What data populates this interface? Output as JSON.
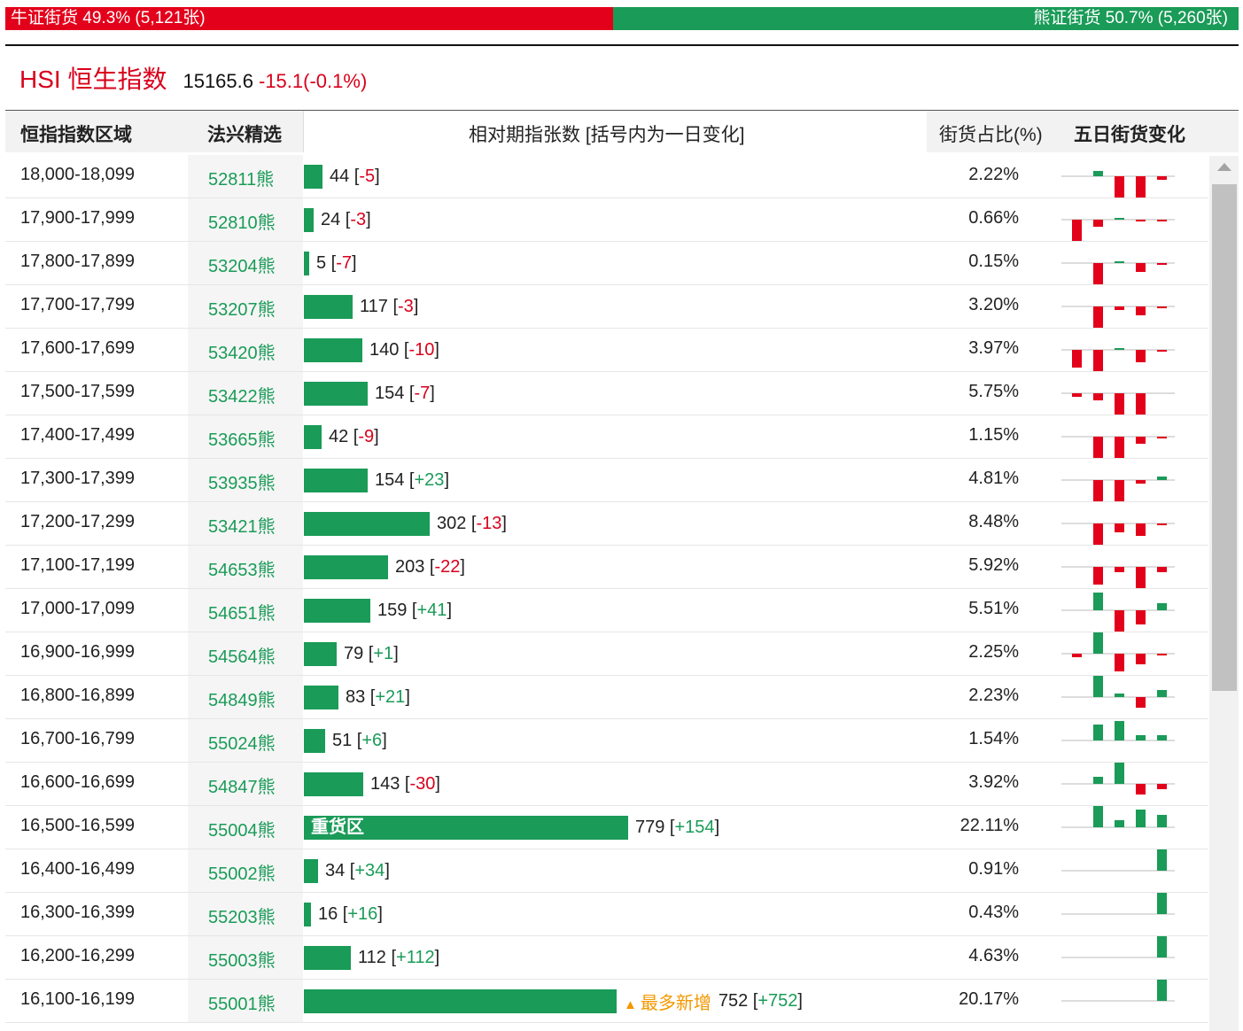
{
  "summary": {
    "bull_label": "牛证街货 49.3% (5,121张)",
    "bear_label": "熊证街货 50.7% (5,260张)",
    "bull_share": 49.3,
    "bear_share": 50.7
  },
  "index": {
    "name": "HSI 恒生指数",
    "value": "15165.6",
    "change": "-15.1(-0.1%)"
  },
  "headers": {
    "range": "恒指指数区域",
    "pick": "法兴精选",
    "relative": "相对期指张数 [括号内为一日变化]",
    "share": "街货占比(%)",
    "five_day": "五日街货变化"
  },
  "colors": {
    "bull": "#e3001b",
    "bear": "#1a9b58",
    "accent": "#f39800"
  },
  "rows": [
    {
      "range": "18,000-18,099",
      "code": "52811熊",
      "count": "44",
      "change": "-5",
      "pct": "2.22%",
      "value": 44,
      "spark": [
        0,
        3,
        -12,
        -12,
        -2
      ]
    },
    {
      "range": "17,900-17,999",
      "code": "52810熊",
      "count": "24",
      "change": "-3",
      "pct": "0.66%",
      "value": 24,
      "spark": [
        -12,
        -4,
        1,
        -1,
        -1
      ]
    },
    {
      "range": "17,800-17,899",
      "code": "53204熊",
      "count": "5",
      "change": "-7",
      "pct": "0.15%",
      "value": 5,
      "spark": [
        0,
        -12,
        1,
        -5,
        -1
      ]
    },
    {
      "range": "17,700-17,799",
      "code": "53207熊",
      "count": "117",
      "change": "-3",
      "pct": "3.20%",
      "value": 117,
      "spark": [
        0,
        -12,
        -2,
        -5,
        -1
      ]
    },
    {
      "range": "17,600-17,699",
      "code": "53420熊",
      "count": "140",
      "change": "-10",
      "pct": "3.97%",
      "value": 140,
      "spark": [
        -10,
        -12,
        1,
        -7,
        -1
      ]
    },
    {
      "range": "17,500-17,599",
      "code": "53422熊",
      "count": "154",
      "change": "-7",
      "pct": "5.75%",
      "value": 154,
      "spark": [
        -2,
        -4,
        -12,
        -12,
        0
      ]
    },
    {
      "range": "17,400-17,499",
      "code": "53665熊",
      "count": "42",
      "change": "-9",
      "pct": "1.15%",
      "value": 42,
      "spark": [
        0,
        -12,
        -12,
        -4,
        -1
      ]
    },
    {
      "range": "17,300-17,399",
      "code": "53935熊",
      "count": "154",
      "change": "+23",
      "pct": "4.81%",
      "value": 154,
      "spark": [
        0,
        -12,
        -12,
        -2,
        2
      ]
    },
    {
      "range": "17,200-17,299",
      "code": "53421熊",
      "count": "302",
      "change": "-13",
      "pct": "8.48%",
      "value": 302,
      "spark": [
        0,
        -12,
        -5,
        -7,
        -1
      ]
    },
    {
      "range": "17,100-17,199",
      "code": "54653熊",
      "count": "203",
      "change": "-22",
      "pct": "5.92%",
      "value": 203,
      "spark": [
        0,
        -10,
        -3,
        -12,
        -3
      ]
    },
    {
      "range": "17,000-17,099",
      "code": "54651熊",
      "count": "159",
      "change": "+41",
      "pct": "5.51%",
      "value": 159,
      "spark": [
        0,
        10,
        -12,
        -8,
        4
      ]
    },
    {
      "range": "16,900-16,999",
      "code": "54564熊",
      "count": "79",
      "change": "+1",
      "pct": "2.25%",
      "value": 79,
      "spark": [
        -2,
        12,
        -10,
        -6,
        -1
      ]
    },
    {
      "range": "16,800-16,899",
      "code": "54849熊",
      "count": "83",
      "change": "+21",
      "pct": "2.23%",
      "value": 83,
      "spark": [
        0,
        12,
        2,
        -6,
        4
      ]
    },
    {
      "range": "16,700-16,799",
      "code": "55024熊",
      "count": "51",
      "change": "+6",
      "pct": "1.54%",
      "value": 51,
      "spark": [
        0,
        9,
        11,
        3,
        3
      ]
    },
    {
      "range": "16,600-16,699",
      "code": "54847熊",
      "count": "143",
      "change": "-30",
      "pct": "3.92%",
      "value": 143,
      "spark": [
        0,
        4,
        12,
        -6,
        -3
      ]
    },
    {
      "range": "16,500-16,599",
      "code": "55004熊",
      "count": "779",
      "change": "+154",
      "pct": "22.11%",
      "value": 779,
      "label": "重货区",
      "spark": [
        0,
        12,
        4,
        10,
        7
      ]
    },
    {
      "range": "16,400-16,499",
      "code": "55002熊",
      "count": "34",
      "change": "+34",
      "pct": "0.91%",
      "value": 34,
      "spark": [
        0,
        0,
        0,
        0,
        12
      ]
    },
    {
      "range": "16,300-16,399",
      "code": "55203熊",
      "count": "16",
      "change": "+16",
      "pct": "0.43%",
      "value": 16,
      "spark": [
        0,
        0,
        0,
        0,
        12
      ]
    },
    {
      "range": "16,200-16,299",
      "code": "55003熊",
      "count": "112",
      "change": "+112",
      "pct": "4.63%",
      "value": 112,
      "spark": [
        0,
        0,
        0,
        0,
        12
      ]
    },
    {
      "range": "16,100-16,199",
      "code": "55001熊",
      "count": "752",
      "change": "+752",
      "pct": "20.17%",
      "value": 752,
      "tag": "最多新增",
      "spark": [
        0,
        0,
        0,
        0,
        12
      ]
    }
  ]
}
